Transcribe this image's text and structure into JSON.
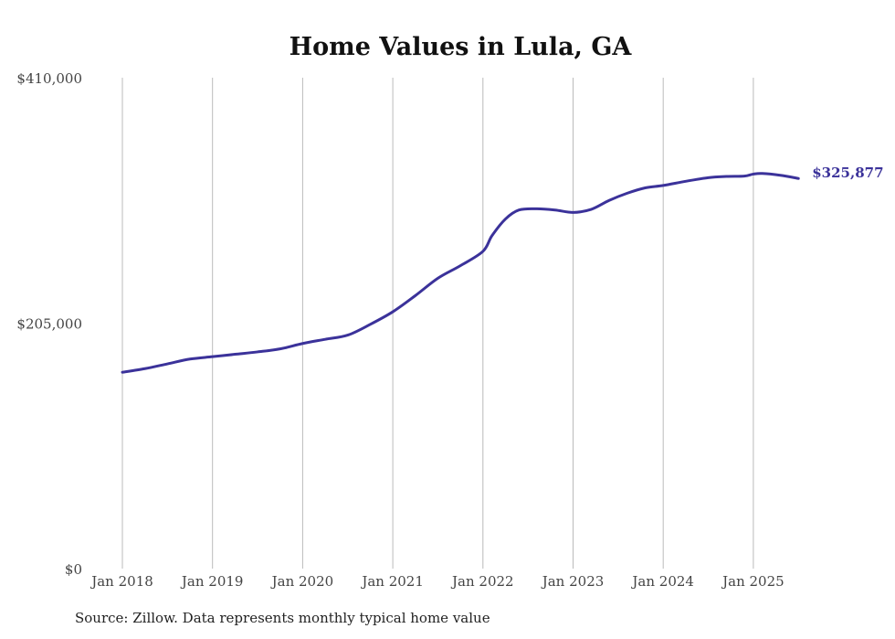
{
  "chart_data": {
    "type": "line",
    "title": "Home Values in Lula, GA",
    "xlabel": "",
    "ylabel": "",
    "ylim": [
      0,
      410000
    ],
    "y_ticks": [
      {
        "value": 0,
        "label": "$0"
      },
      {
        "value": 205000,
        "label": "$205,000"
      },
      {
        "value": 410000,
        "label": "$410,000"
      }
    ],
    "x_ticks": [
      {
        "value": 2018,
        "label": "Jan 2018"
      },
      {
        "value": 2019,
        "label": "Jan 2019"
      },
      {
        "value": 2020,
        "label": "Jan 2020"
      },
      {
        "value": 2021,
        "label": "Jan 2021"
      },
      {
        "value": 2022,
        "label": "Jan 2022"
      },
      {
        "value": 2023,
        "label": "Jan 2023"
      },
      {
        "value": 2024,
        "label": "Jan 2024"
      },
      {
        "value": 2025,
        "label": "Jan 2025"
      }
    ],
    "xlim": [
      2018,
      2025.5
    ],
    "grid": "vertical",
    "series": [
      {
        "name": "Typical home value",
        "color": "#3b329a",
        "x": [
          2018,
          2018.25,
          2018.5,
          2018.75,
          2019,
          2019.25,
          2019.5,
          2019.75,
          2020,
          2020.25,
          2020.5,
          2020.75,
          2021,
          2021.25,
          2021.5,
          2021.75,
          2022,
          2022.1,
          2022.25,
          2022.4,
          2022.6,
          2022.8,
          2023,
          2023.2,
          2023.4,
          2023.6,
          2023.8,
          2024,
          2024.25,
          2024.5,
          2024.7,
          2024.9,
          2025,
          2025.1,
          2025.3,
          2025.5
        ],
        "values": [
          164000,
          167000,
          171000,
          175000,
          177000,
          179000,
          181000,
          183500,
          188000,
          191500,
          195000,
          204000,
          214500,
          228000,
          242500,
          253000,
          265000,
          278000,
          292000,
          299500,
          300500,
          299500,
          297500,
          300000,
          307500,
          313500,
          318000,
          320000,
          323500,
          326500,
          327500,
          327800,
          329500,
          330000,
          328500,
          325877
        ]
      }
    ],
    "end_label": "$325,877"
  },
  "source_note": "Source: Zillow. Data represents monthly typical home value"
}
